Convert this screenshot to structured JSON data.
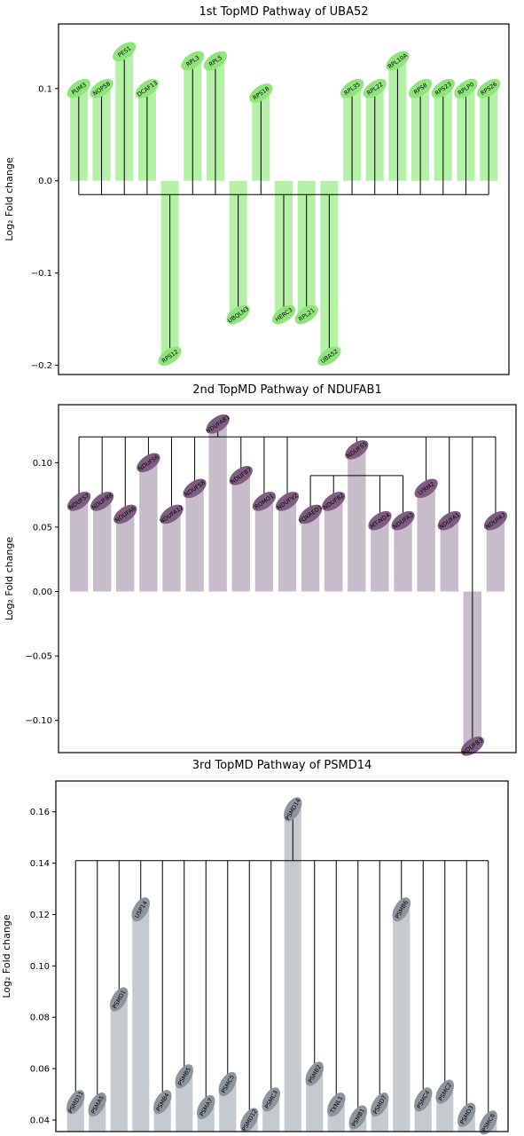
{
  "chart_data": [
    {
      "type": "bar",
      "title": "1st TopMD Pathway of UBA52",
      "ylabel": "Log₂ Fold change",
      "ylim": [
        -0.21,
        0.17
      ],
      "yticks": [
        0.1,
        0.0,
        -0.1,
        -0.2
      ],
      "ytick_labels": [
        "0.1",
        "0.0",
        "−0.1",
        "−0.2"
      ],
      "bar_color": "#b4f0a6",
      "node_color": "#8fe57c",
      "categories": [
        "PUM3",
        "NOP58",
        "PES1",
        "DCAF13",
        "RPS12",
        "RPL3",
        "RPL5",
        "UBQLN3",
        "RPS18",
        "HERC3",
        "RPL21",
        "UBA52",
        "RPL35",
        "RPL22",
        "RPL10A",
        "RPS8",
        "RPS23",
        "RPLP0",
        "RPS26"
      ],
      "values": [
        0.1,
        0.1,
        0.14,
        0.1,
        -0.19,
        0.13,
        0.13,
        -0.145,
        0.095,
        -0.145,
        -0.145,
        -0.19,
        0.1,
        0.1,
        0.13,
        0.1,
        0.1,
        0.1,
        0.1
      ]
    },
    {
      "type": "bar",
      "title": "2nd TopMD Pathway of NDUFAB1",
      "ylabel": "Log₂ Fold change",
      "ylim": [
        -0.125,
        0.145
      ],
      "yticks": [
        0.1,
        0.05,
        0.0,
        -0.05,
        -0.1
      ],
      "ytick_labels": [
        "0.10",
        "0.05",
        "0.00",
        "−0.05",
        "−0.10"
      ],
      "bar_color": "#c7bcc9",
      "node_color": "#7e5d80",
      "categories": [
        "NDUFS7",
        "NDUFB8",
        "NDUFA6",
        "NDUFS6",
        "NDUFA12",
        "NDUFS8",
        "NDUFAB1",
        "NDUFB7",
        "ROMO1",
        "NDUFV2",
        "FOXRED1",
        "NDUFB2",
        "NDUFS5",
        "MT-ND4",
        "NDUFA3",
        "LYRM2",
        "NDUFA1",
        "NDUFB3",
        "NDUFA7"
      ],
      "values": [
        0.07,
        0.07,
        0.06,
        0.1,
        0.06,
        0.08,
        0.13,
        0.09,
        0.07,
        0.07,
        0.06,
        0.07,
        0.11,
        0.055,
        0.055,
        0.08,
        0.055,
        -0.12,
        0.055
      ]
    },
    {
      "type": "bar",
      "title": "3rd TopMD Pathway of PSMD14",
      "ylabel": "Log₂ Fold change",
      "ylim": [
        0.0355,
        0.172
      ],
      "yticks": [
        0.16,
        0.14,
        0.12,
        0.1,
        0.08,
        0.06,
        0.04
      ],
      "ytick_labels": [
        "0.16",
        "0.14",
        "0.12",
        "0.10",
        "0.08",
        "0.06",
        "0.04"
      ],
      "bar_color": "#c5cacf",
      "node_color": "#8d949c",
      "categories": [
        "PSMD11",
        "PSMA5",
        "PSMD1",
        "USP14",
        "PSMB4",
        "PSMB5",
        "PSMA7",
        "PSMC5",
        "PSMD12",
        "PSMC3",
        "PSMD14",
        "PSMB2",
        "TXNL1",
        "PSMB1",
        "PSMD7",
        "PSMB6",
        "PSMC4",
        "PSMC2",
        "PSMD3",
        "PSMC6"
      ],
      "values": [
        0.047,
        0.046,
        0.087,
        0.122,
        0.047,
        0.057,
        0.045,
        0.054,
        0.04,
        0.048,
        0.161,
        0.058,
        0.046,
        0.041,
        0.046,
        0.122,
        0.048,
        0.051,
        0.042,
        0.039
      ]
    }
  ]
}
